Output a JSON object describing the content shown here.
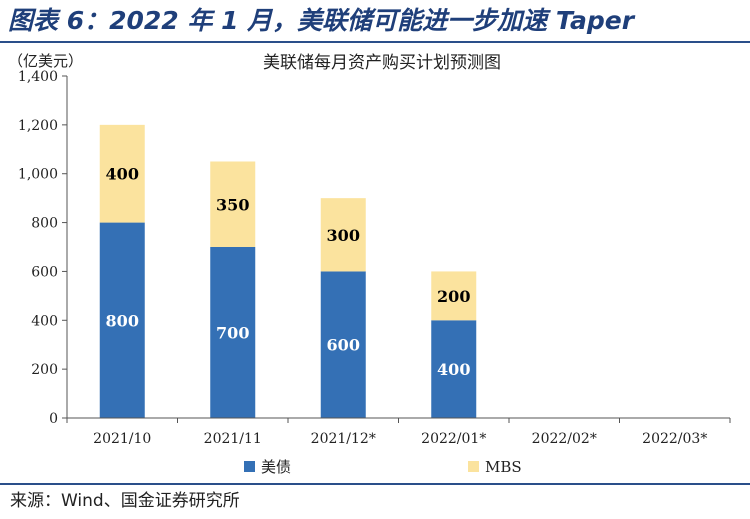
{
  "figure_title": "图表 6：2022 年 1 月，美联储可能进一步加速 Taper",
  "source_text": "来源：Wind、国金证券研究所",
  "chart_data": {
    "type": "bar",
    "stacked": true,
    "title": "美联储每月资产购买计划预测图",
    "ylabel": "（亿美元）",
    "xlabel": "",
    "categories": [
      "2021/10",
      "2021/11",
      "2021/12*",
      "2022/01*",
      "2022/02*",
      "2022/03*"
    ],
    "ylim": [
      0,
      1400
    ],
    "yticks": [
      0,
      200,
      400,
      600,
      800,
      1000,
      1200,
      1400
    ],
    "ytick_labels": [
      "0",
      "200",
      "400",
      "600",
      "800",
      "1,000",
      "1,200",
      "1,400"
    ],
    "series": [
      {
        "name": "美债",
        "values": [
          800,
          700,
          600,
          400,
          0,
          0
        ],
        "labels": [
          "800",
          "700",
          "600",
          "400",
          "",
          ""
        ],
        "color": "#3470b5",
        "label_color": "#ffffff"
      },
      {
        "name": "MBS",
        "values": [
          400,
          350,
          300,
          200,
          0,
          0
        ],
        "labels": [
          "400",
          "350",
          "300",
          "200",
          "",
          ""
        ],
        "color": "#fbe39e",
        "label_color": "#000000"
      }
    ],
    "grid": false,
    "legend_position": "bottom"
  }
}
